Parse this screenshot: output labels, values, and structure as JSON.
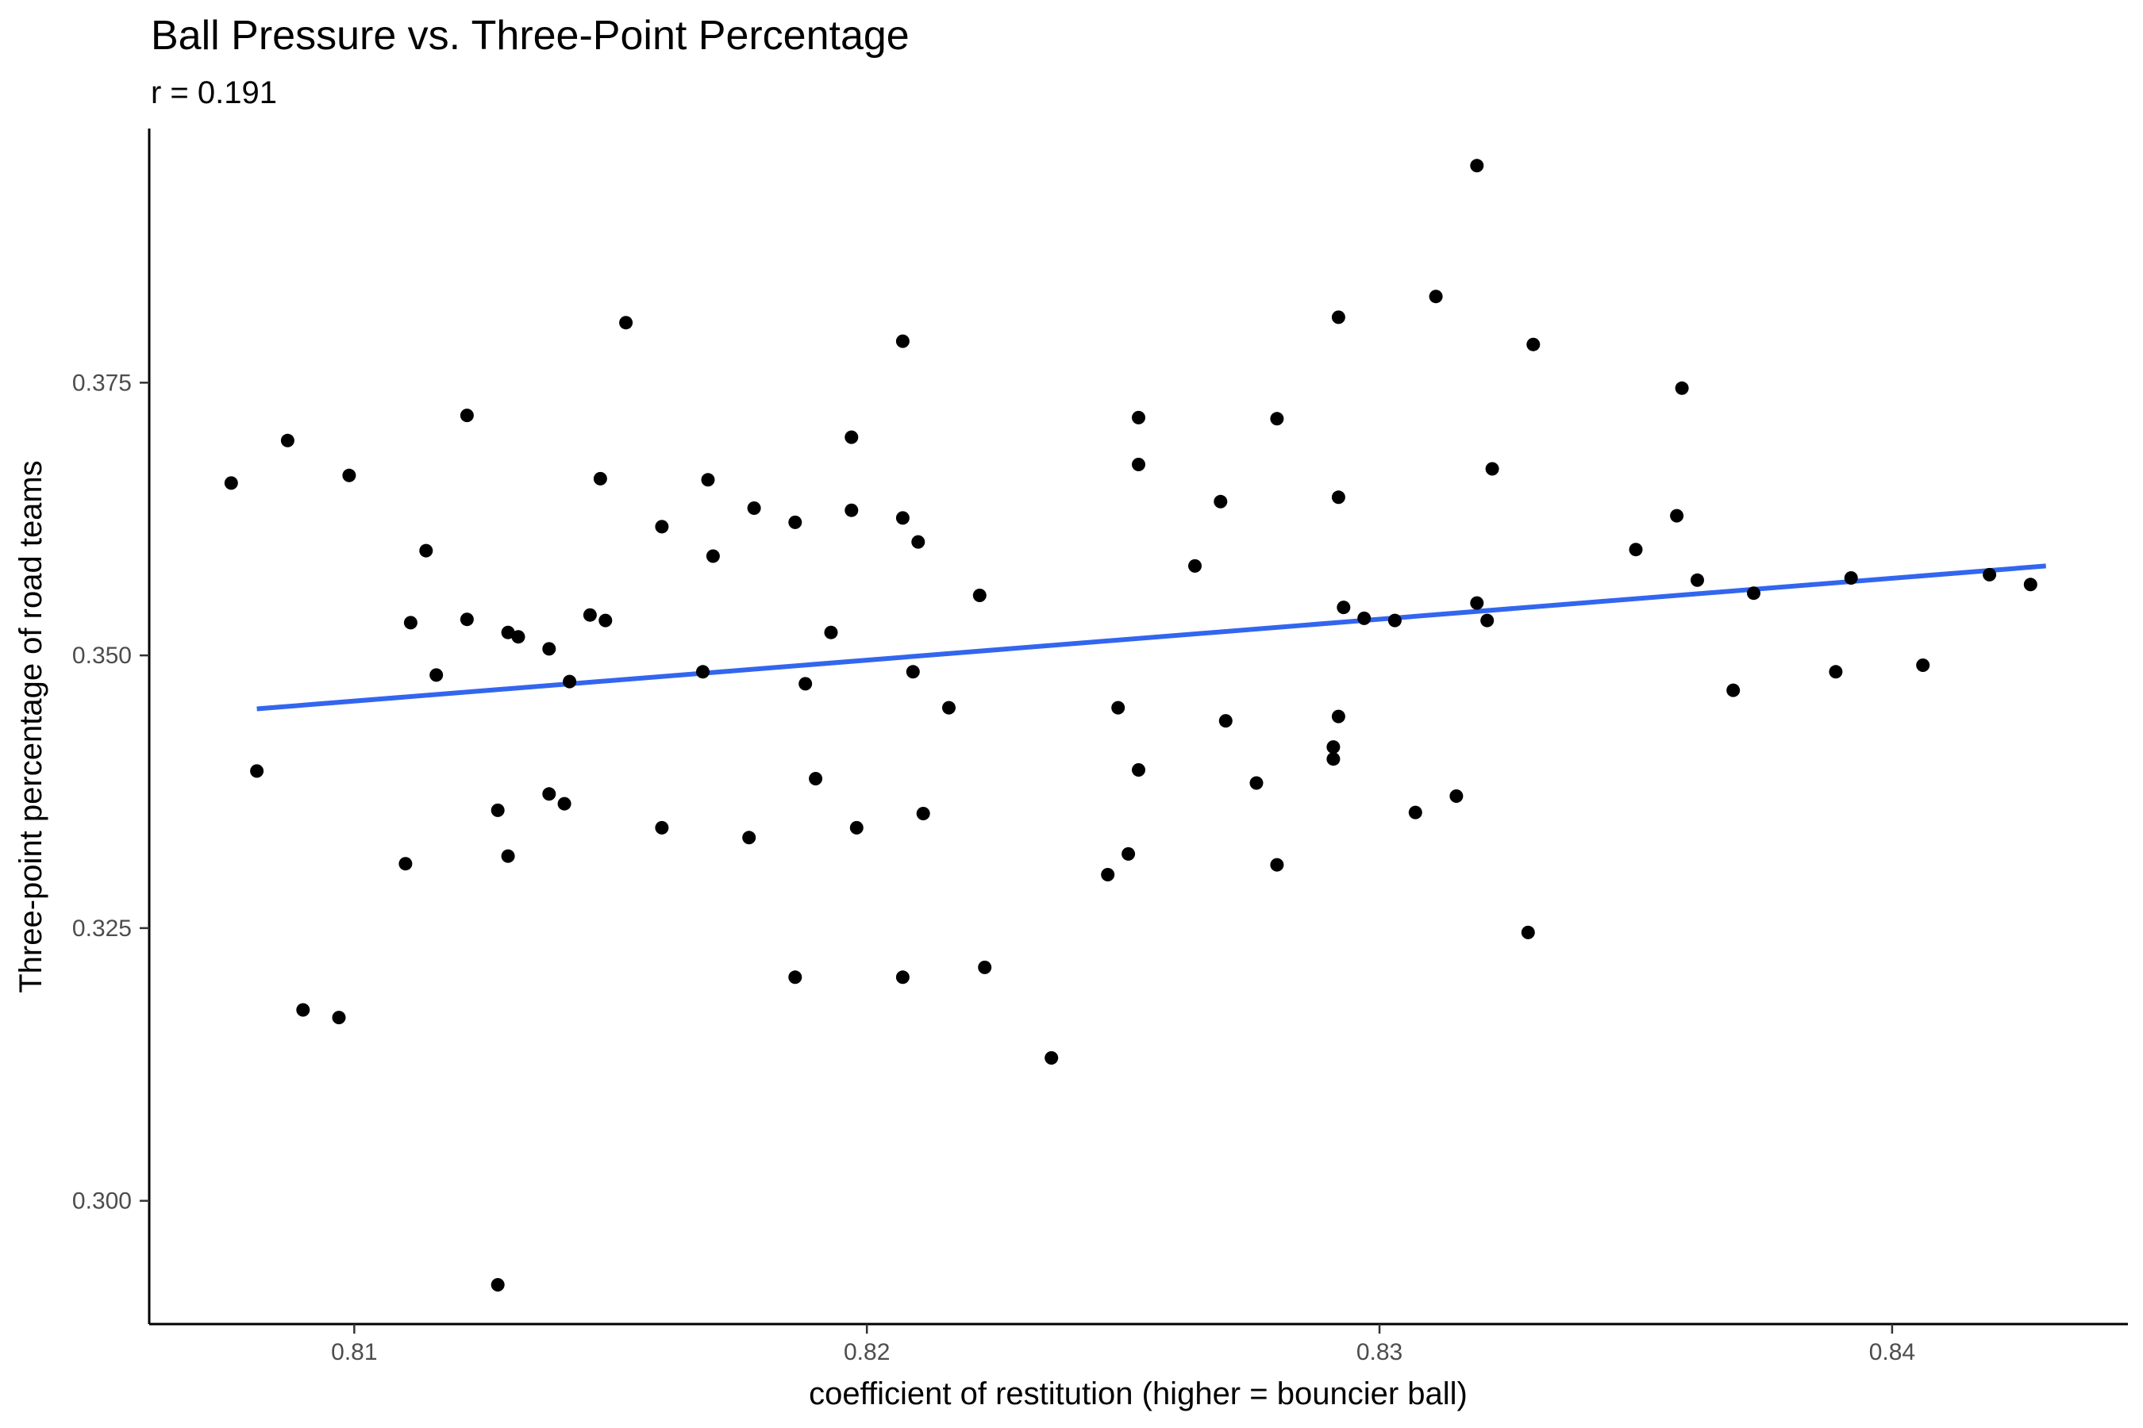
{
  "chart_data": {
    "type": "scatter",
    "title": "Ball Pressure vs. Three-Point Percentage",
    "subtitle": "r = 0.191",
    "xlabel": "coefficient of restitution (higher = bouncier ball)",
    "ylabel": "Three-point percentage of road teams",
    "xlim": [
      0.806,
      0.8446
    ],
    "ylim": [
      0.2887,
      0.3983
    ],
    "x_ticks": [
      0.81,
      0.82,
      0.83,
      0.84
    ],
    "x_tick_labels": [
      "0.81",
      "0.82",
      "0.83",
      "0.84"
    ],
    "y_ticks": [
      0.3,
      0.325,
      0.35,
      0.375
    ],
    "y_tick_labels": [
      "0.300",
      "0.325",
      "0.350",
      "0.375"
    ],
    "grid": false,
    "legend": "none",
    "point_color": "#000000",
    "trend_color": "#3366ee",
    "trend_line": {
      "x": [
        0.8081,
        0.843
      ],
      "y": [
        0.3451,
        0.3582
      ]
    },
    "points": [
      {
        "x": 0.8076,
        "y": 0.3658
      },
      {
        "x": 0.8081,
        "y": 0.3394
      },
      {
        "x": 0.8087,
        "y": 0.3697
      },
      {
        "x": 0.809,
        "y": 0.3175
      },
      {
        "x": 0.8097,
        "y": 0.3168
      },
      {
        "x": 0.8099,
        "y": 0.3665
      },
      {
        "x": 0.811,
        "y": 0.3309
      },
      {
        "x": 0.8111,
        "y": 0.353
      },
      {
        "x": 0.8114,
        "y": 0.3596
      },
      {
        "x": 0.8116,
        "y": 0.3482
      },
      {
        "x": 0.8122,
        "y": 0.3533
      },
      {
        "x": 0.8122,
        "y": 0.372
      },
      {
        "x": 0.8128,
        "y": 0.3358
      },
      {
        "x": 0.8128,
        "y": 0.2923
      },
      {
        "x": 0.813,
        "y": 0.3316
      },
      {
        "x": 0.813,
        "y": 0.3521
      },
      {
        "x": 0.8132,
        "y": 0.3517
      },
      {
        "x": 0.8138,
        "y": 0.3506
      },
      {
        "x": 0.8138,
        "y": 0.3373
      },
      {
        "x": 0.8141,
        "y": 0.3364
      },
      {
        "x": 0.8142,
        "y": 0.3476
      },
      {
        "x": 0.8146,
        "y": 0.3537
      },
      {
        "x": 0.8148,
        "y": 0.3662
      },
      {
        "x": 0.8149,
        "y": 0.3532
      },
      {
        "x": 0.8153,
        "y": 0.3805
      },
      {
        "x": 0.816,
        "y": 0.3342
      },
      {
        "x": 0.816,
        "y": 0.3618
      },
      {
        "x": 0.8168,
        "y": 0.3485
      },
      {
        "x": 0.8169,
        "y": 0.3661
      },
      {
        "x": 0.817,
        "y": 0.3591
      },
      {
        "x": 0.8177,
        "y": 0.3333
      },
      {
        "x": 0.8178,
        "y": 0.3635
      },
      {
        "x": 0.8186,
        "y": 0.3622
      },
      {
        "x": 0.8186,
        "y": 0.3205
      },
      {
        "x": 0.8188,
        "y": 0.3474
      },
      {
        "x": 0.819,
        "y": 0.3387
      },
      {
        "x": 0.8193,
        "y": 0.3521
      },
      {
        "x": 0.8197,
        "y": 0.37
      },
      {
        "x": 0.8197,
        "y": 0.3633
      },
      {
        "x": 0.8198,
        "y": 0.3342
      },
      {
        "x": 0.8207,
        "y": 0.3205
      },
      {
        "x": 0.8207,
        "y": 0.3626
      },
      {
        "x": 0.8207,
        "y": 0.3788
      },
      {
        "x": 0.8209,
        "y": 0.3485
      },
      {
        "x": 0.821,
        "y": 0.3604
      },
      {
        "x": 0.8211,
        "y": 0.3355
      },
      {
        "x": 0.8216,
        "y": 0.3452
      },
      {
        "x": 0.8222,
        "y": 0.3555
      },
      {
        "x": 0.8223,
        "y": 0.3214
      },
      {
        "x": 0.8236,
        "y": 0.3131
      },
      {
        "x": 0.8247,
        "y": 0.3299
      },
      {
        "x": 0.8249,
        "y": 0.3452
      },
      {
        "x": 0.8251,
        "y": 0.3318
      },
      {
        "x": 0.8253,
        "y": 0.3395
      },
      {
        "x": 0.8253,
        "y": 0.3675
      },
      {
        "x": 0.8253,
        "y": 0.3718
      },
      {
        "x": 0.8264,
        "y": 0.3582
      },
      {
        "x": 0.8269,
        "y": 0.3641
      },
      {
        "x": 0.827,
        "y": 0.344
      },
      {
        "x": 0.8276,
        "y": 0.3383
      },
      {
        "x": 0.828,
        "y": 0.3308
      },
      {
        "x": 0.828,
        "y": 0.3717
      },
      {
        "x": 0.8291,
        "y": 0.3405
      },
      {
        "x": 0.8291,
        "y": 0.3416
      },
      {
        "x": 0.8292,
        "y": 0.3444
      },
      {
        "x": 0.8292,
        "y": 0.3645
      },
      {
        "x": 0.8292,
        "y": 0.381
      },
      {
        "x": 0.8293,
        "y": 0.3544
      },
      {
        "x": 0.8297,
        "y": 0.3534
      },
      {
        "x": 0.8303,
        "y": 0.3532
      },
      {
        "x": 0.8307,
        "y": 0.3356
      },
      {
        "x": 0.8311,
        "y": 0.3829
      },
      {
        "x": 0.8315,
        "y": 0.3371
      },
      {
        "x": 0.8319,
        "y": 0.3548
      },
      {
        "x": 0.8319,
        "y": 0.3949
      },
      {
        "x": 0.8321,
        "y": 0.3532
      },
      {
        "x": 0.8322,
        "y": 0.3671
      },
      {
        "x": 0.8329,
        "y": 0.3246
      },
      {
        "x": 0.833,
        "y": 0.3785
      },
      {
        "x": 0.835,
        "y": 0.3597
      },
      {
        "x": 0.8358,
        "y": 0.3628
      },
      {
        "x": 0.8359,
        "y": 0.3745
      },
      {
        "x": 0.8362,
        "y": 0.3569
      },
      {
        "x": 0.8369,
        "y": 0.3468
      },
      {
        "x": 0.8373,
        "y": 0.3557
      },
      {
        "x": 0.8389,
        "y": 0.3485
      },
      {
        "x": 0.8392,
        "y": 0.3571
      },
      {
        "x": 0.8406,
        "y": 0.3491
      },
      {
        "x": 0.8419,
        "y": 0.3574
      },
      {
        "x": 0.8427,
        "y": 0.3565
      }
    ]
  }
}
